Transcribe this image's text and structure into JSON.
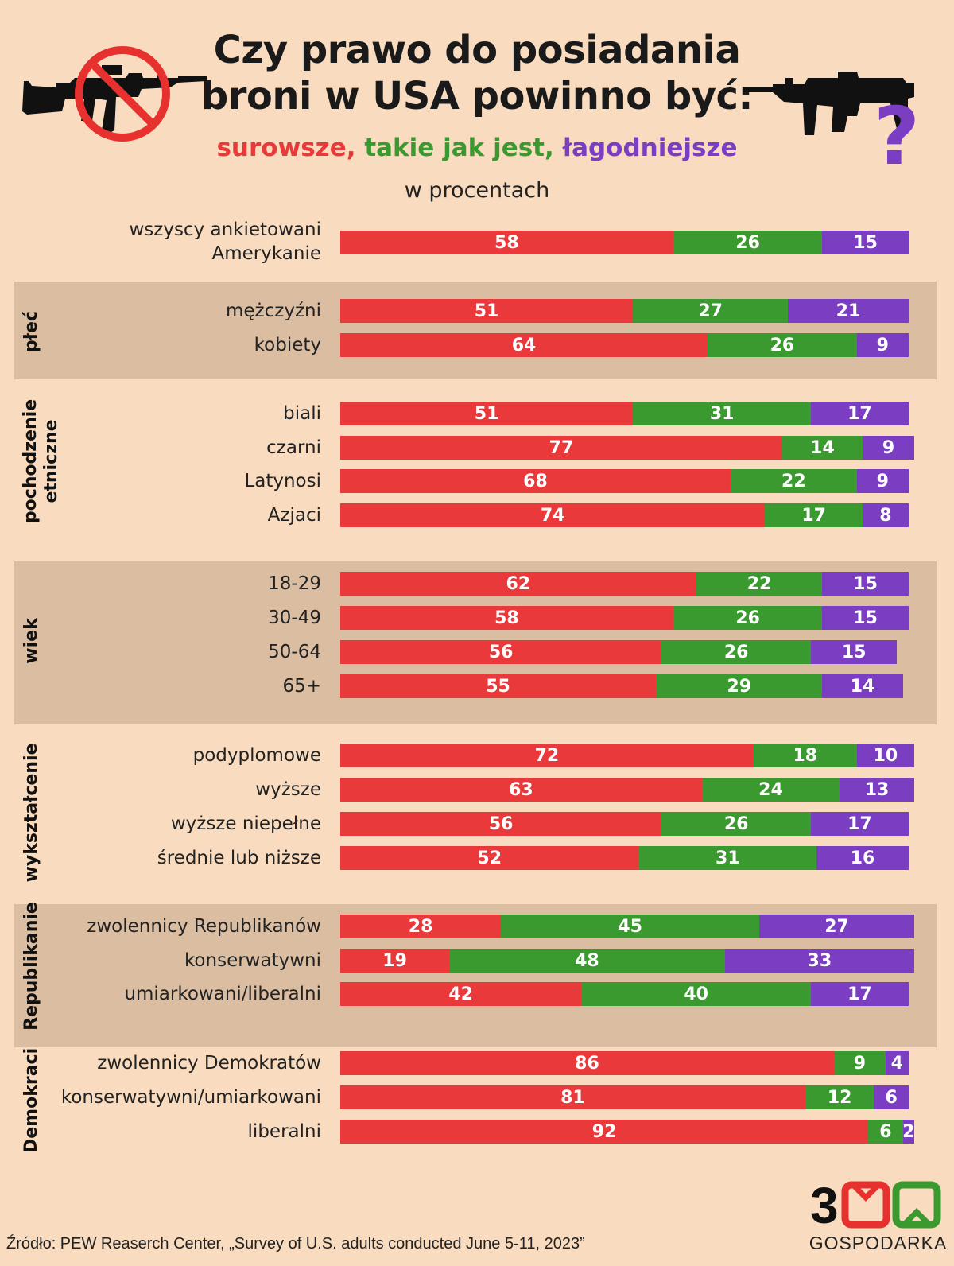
{
  "header": {
    "title_line1": "Czy prawo do posiadania",
    "title_line2": "broni w USA powinno być:",
    "legend": [
      {
        "label": "surowsze,",
        "color": "#e9393a"
      },
      {
        "label": "takie jak jest,",
        "color": "#3b9a2f"
      },
      {
        "label": "łagodniejsze",
        "color": "#7b3dc2"
      }
    ],
    "units": "w procentach"
  },
  "colors": {
    "stricter": "#e9393a",
    "same": "#3b9a2f",
    "looser": "#7b3dc2",
    "band": "#dbbea2",
    "background": "#f9dcbf"
  },
  "icons": {
    "left": "crossed-out-rifle-icon",
    "right": "rifle-question-icon"
  },
  "chart_data": {
    "type": "bar",
    "orientation": "horizontal",
    "stacked": true,
    "series_names": [
      "surowsze",
      "takie jak jest",
      "łagodniejsze"
    ],
    "groups": [
      {
        "name": "",
        "rows": [
          {
            "label": [
              "wszyscy ankietowani",
              "Amerykanie"
            ],
            "values": [
              58,
              26,
              15
            ]
          }
        ]
      },
      {
        "name": "płeć",
        "rows": [
          {
            "label": [
              "mężczyźni"
            ],
            "values": [
              51,
              27,
              21
            ]
          },
          {
            "label": [
              "kobiety"
            ],
            "values": [
              64,
              26,
              9
            ]
          }
        ]
      },
      {
        "name": "pochodzenie etniczne",
        "rows": [
          {
            "label": [
              "biali"
            ],
            "values": [
              51,
              31,
              17
            ]
          },
          {
            "label": [
              "czarni"
            ],
            "values": [
              77,
              14,
              9
            ]
          },
          {
            "label": [
              "Latynosi"
            ],
            "values": [
              68,
              22,
              9
            ]
          },
          {
            "label": [
              "Azjaci"
            ],
            "values": [
              74,
              17,
              8
            ]
          }
        ]
      },
      {
        "name": "wiek",
        "rows": [
          {
            "label": [
              "18-29"
            ],
            "values": [
              62,
              22,
              15
            ]
          },
          {
            "label": [
              "30-49"
            ],
            "values": [
              58,
              26,
              15
            ]
          },
          {
            "label": [
              "50-64"
            ],
            "values": [
              56,
              26,
              15
            ]
          },
          {
            "label": [
              "65+"
            ],
            "values": [
              55,
              29,
              14
            ]
          }
        ]
      },
      {
        "name": "wykształcenie",
        "rows": [
          {
            "label": [
              "podyplomowe"
            ],
            "values": [
              72,
              18,
              10
            ]
          },
          {
            "label": [
              "wyższe"
            ],
            "values": [
              63,
              24,
              13
            ]
          },
          {
            "label": [
              "wyższe niepełne"
            ],
            "values": [
              56,
              26,
              17
            ]
          },
          {
            "label": [
              "średnie lub niższe"
            ],
            "values": [
              52,
              31,
              16
            ]
          }
        ]
      },
      {
        "name": "Republikanie",
        "rows": [
          {
            "label": [
              "zwolennicy Republikanów"
            ],
            "values": [
              28,
              45,
              27
            ]
          },
          {
            "label": [
              "konserwatywni"
            ],
            "values": [
              19,
              48,
              33
            ]
          },
          {
            "label": [
              "umiarkowani/liberalni"
            ],
            "values": [
              42,
              40,
              17
            ]
          }
        ]
      },
      {
        "name": "Demokraci",
        "rows": [
          {
            "label": [
              "zwolennicy Demokratów"
            ],
            "values": [
              86,
              9,
              4
            ]
          },
          {
            "label": [
              "konserwatywni/umiarkowani"
            ],
            "values": [
              81,
              12,
              6
            ]
          },
          {
            "label": [
              "liberalni"
            ],
            "values": [
              92,
              6,
              2
            ]
          }
        ]
      }
    ]
  },
  "footer": {
    "source": "Źródło: PEW Reaserch Center, „Survey of U.S. adults conducted June 5-11, 2023”",
    "logo_number": "300",
    "logo_text": "GOSPODARKA"
  }
}
